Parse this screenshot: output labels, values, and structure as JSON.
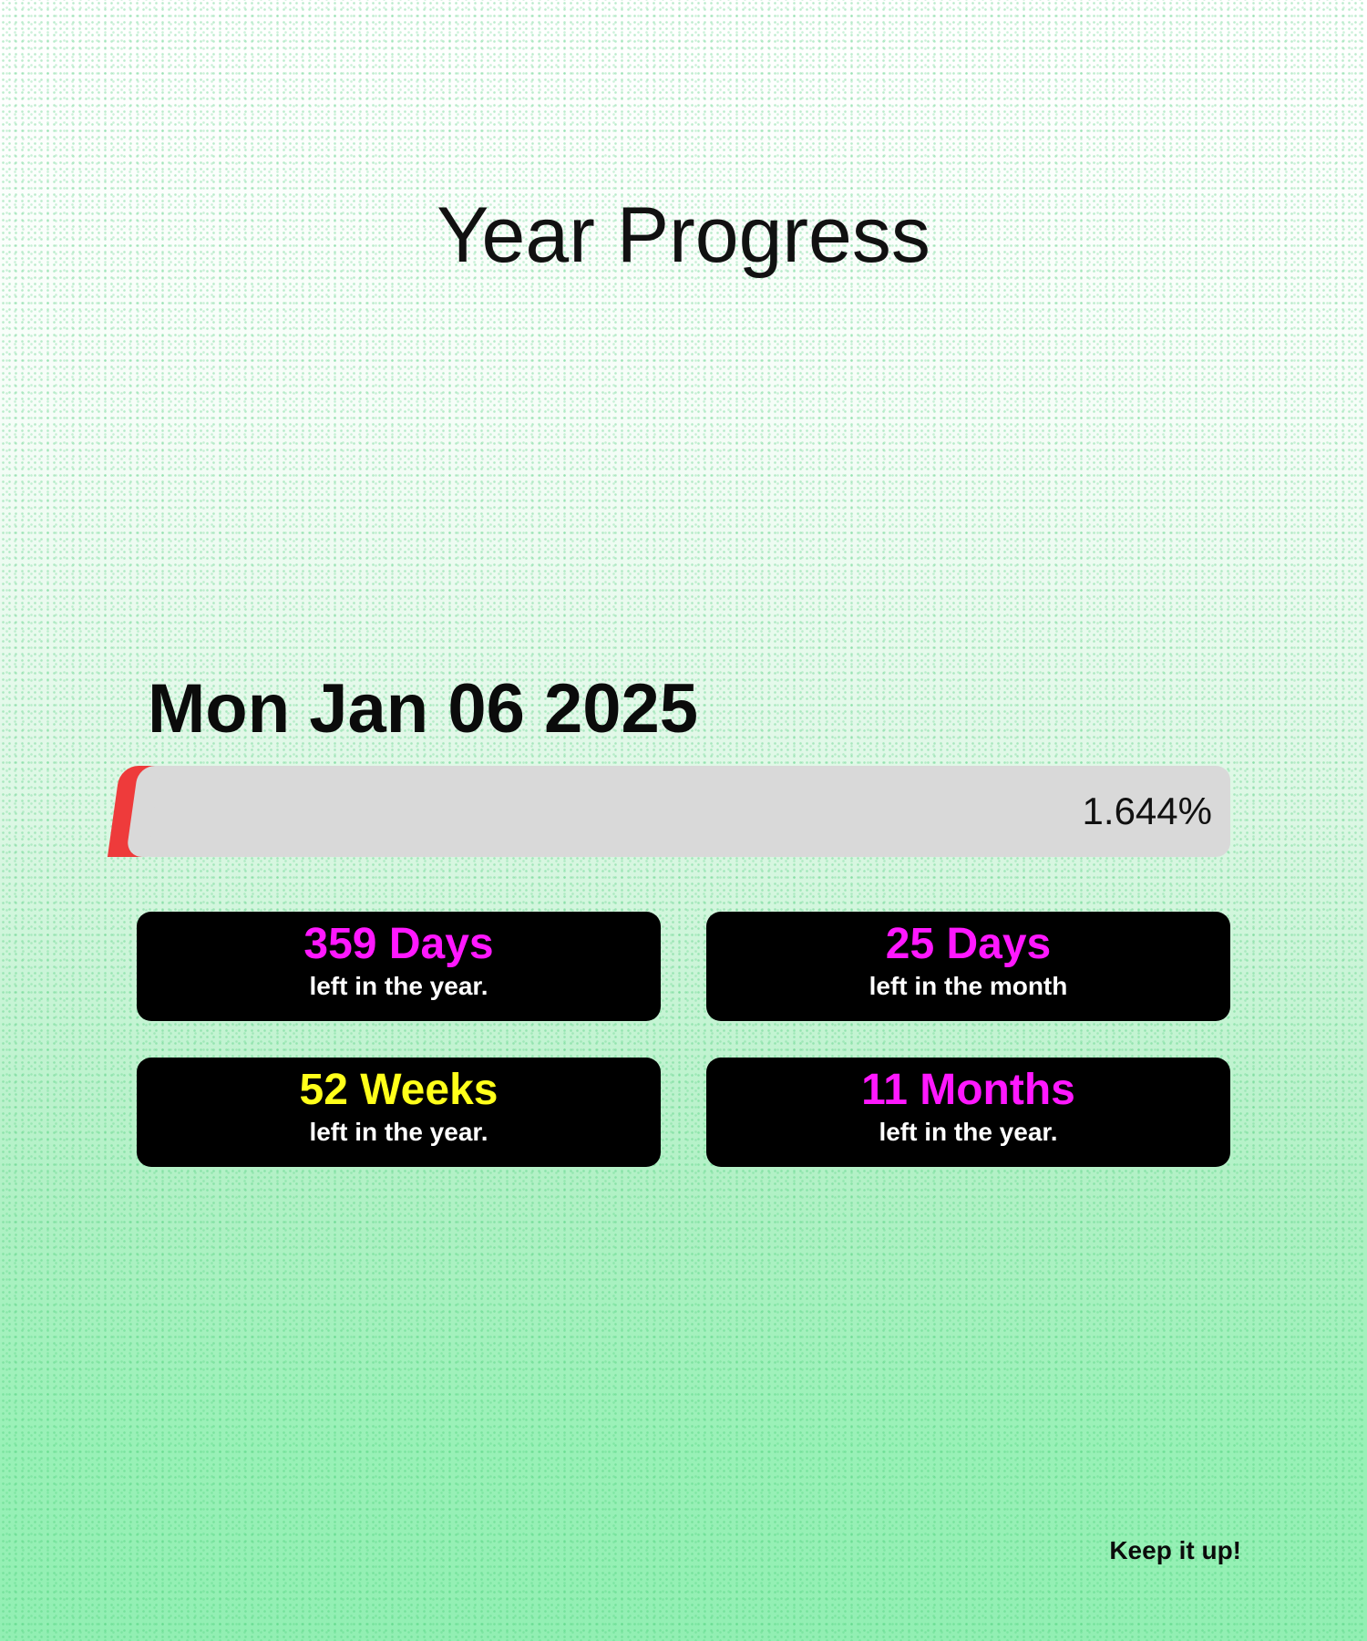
{
  "header": {
    "title": "Year Progress"
  },
  "date": "Mon Jan 06 2025",
  "progress": {
    "value_text": "1.644%",
    "fraction": 0.01644,
    "fill_color": "#ee3b3b",
    "track_color": "#d9d9d9"
  },
  "stats": [
    {
      "value": "359 Days",
      "label": "left in the year.",
      "color": "#ff18ff"
    },
    {
      "value": "25 Days",
      "label": "left in the month",
      "color": "#ff18ff"
    },
    {
      "value": "52 Weeks",
      "label": "left in the year.",
      "color": "#ffff1a"
    },
    {
      "value": "11 Months",
      "label": "left in the year.",
      "color": "#ff18ff"
    }
  ],
  "footer": {
    "text": "Keep it up!"
  },
  "colors": {
    "background_top": "#ffffff",
    "background_bottom": "#92efb3",
    "card_background": "#000000"
  }
}
